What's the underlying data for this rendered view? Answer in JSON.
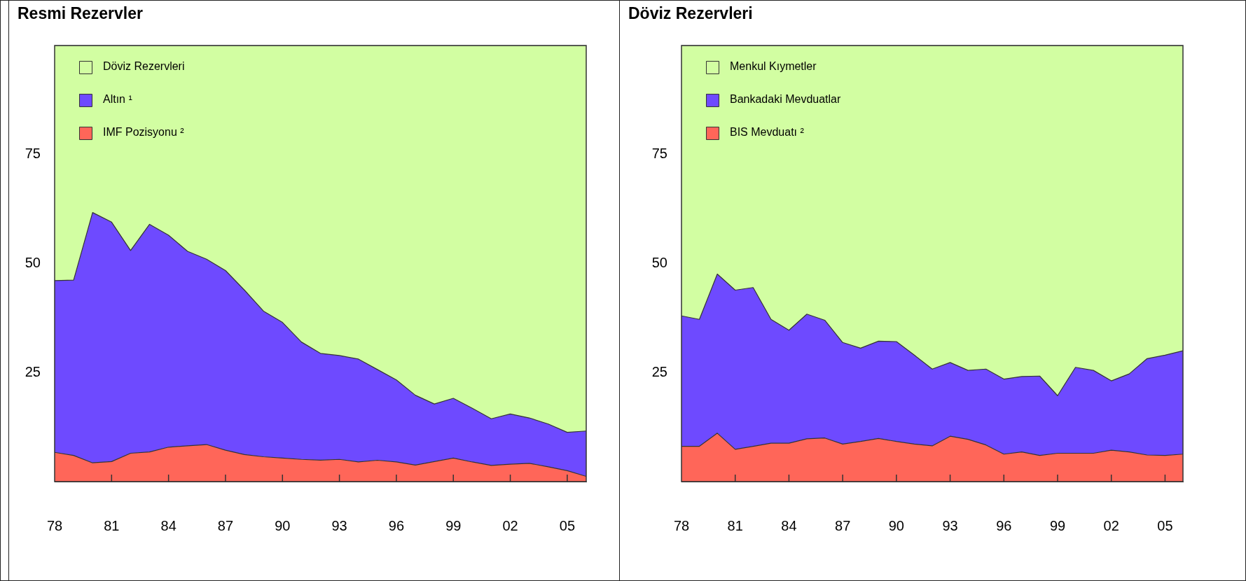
{
  "chart_data": [
    {
      "type": "area",
      "title": "Resmi Rezervler",
      "stacked": true,
      "legend": "top left",
      "xlim": [
        1978,
        2006
      ],
      "ylim": [
        0,
        100
      ],
      "yticks": [
        25,
        50,
        75
      ],
      "xticks": [
        {
          "value": 1978,
          "label": "78"
        },
        {
          "value": 1981,
          "label": "81"
        },
        {
          "value": 1984,
          "label": "84"
        },
        {
          "value": 1987,
          "label": "87"
        },
        {
          "value": 1990,
          "label": "90"
        },
        {
          "value": 1993,
          "label": "93"
        },
        {
          "value": 1996,
          "label": "96"
        },
        {
          "value": 1999,
          "label": "99"
        },
        {
          "value": 2002,
          "label": "02"
        },
        {
          "value": 2005,
          "label": "05"
        }
      ],
      "x": [
        1978,
        1979,
        1980,
        1981,
        1982,
        1983,
        1984,
        1985,
        1986,
        1987,
        1988,
        1989,
        1990,
        1991,
        1992,
        1993,
        1994,
        1995,
        1996,
        1997,
        1998,
        1999,
        2000,
        2001,
        2002,
        2003,
        2004,
        2005,
        2006
      ],
      "series": [
        {
          "name": "IMF Pozisyonu ²",
          "color": "#ff6659",
          "values": [
            6.7,
            6.0,
            4.3,
            4.6,
            6.5,
            6.8,
            7.9,
            8.2,
            8.5,
            7.2,
            6.2,
            5.7,
            5.4,
            5.1,
            4.9,
            5.1,
            4.5,
            4.9,
            4.5,
            3.8,
            4.6,
            5.4,
            4.5,
            3.7,
            4.0,
            4.2,
            3.4,
            2.5,
            1.2
          ]
        },
        {
          "name": "Altın ¹",
          "color": "#6e4aff",
          "values": [
            39.4,
            40.2,
            57.4,
            54.9,
            46.5,
            52.2,
            48.6,
            44.6,
            42.5,
            41.2,
            37.7,
            33.4,
            31.1,
            26.9,
            24.5,
            23.8,
            23.6,
            20.8,
            18.8,
            16.0,
            13.2,
            13.7,
            12.3,
            10.7,
            11.5,
            10.4,
            9.8,
            8.8,
            10.4
          ]
        },
        {
          "name": "Döviz Rezervleri",
          "color": "#d2fea2",
          "values": [
            53.9,
            53.8,
            38.3,
            40.5,
            47.0,
            41.0,
            43.5,
            47.2,
            49.0,
            51.6,
            56.1,
            60.9,
            63.5,
            68.0,
            70.6,
            71.1,
            71.9,
            74.3,
            76.7,
            80.2,
            82.2,
            80.9,
            83.2,
            85.6,
            84.5,
            85.4,
            86.8,
            88.7,
            88.4
          ]
        }
      ]
    },
    {
      "type": "area",
      "title": "Döviz Rezervleri",
      "stacked": true,
      "legend": "top left",
      "xlim": [
        1978,
        2006
      ],
      "ylim": [
        0,
        100
      ],
      "yticks": [
        25,
        50,
        75
      ],
      "xticks": [
        {
          "value": 1978,
          "label": "78"
        },
        {
          "value": 1981,
          "label": "81"
        },
        {
          "value": 1984,
          "label": "84"
        },
        {
          "value": 1987,
          "label": "87"
        },
        {
          "value": 1990,
          "label": "90"
        },
        {
          "value": 1993,
          "label": "93"
        },
        {
          "value": 1996,
          "label": "96"
        },
        {
          "value": 1999,
          "label": "99"
        },
        {
          "value": 2002,
          "label": "02"
        },
        {
          "value": 2005,
          "label": "05"
        }
      ],
      "x": [
        1978,
        1979,
        1980,
        1981,
        1982,
        1983,
        1984,
        1985,
        1986,
        1987,
        1988,
        1989,
        1990,
        1991,
        1992,
        1993,
        1994,
        1995,
        1996,
        1997,
        1998,
        1999,
        2000,
        2001,
        2002,
        2003,
        2004,
        2005,
        2006
      ],
      "series": [
        {
          "name": "BIS Mevduatı ²",
          "color": "#ff6659",
          "values": [
            8.1,
            8.1,
            11.1,
            7.4,
            8.1,
            8.8,
            8.8,
            9.8,
            10.0,
            8.6,
            9.2,
            9.9,
            9.2,
            8.6,
            8.2,
            10.4,
            9.7,
            8.4,
            6.3,
            6.8,
            6.0,
            6.5,
            6.5,
            6.5,
            7.2,
            6.8,
            6.1,
            6.0,
            6.3
          ]
        },
        {
          "name": "Bankadaki Mevduatlar",
          "color": "#6e4aff",
          "values": [
            29.9,
            29.1,
            36.5,
            36.5,
            36.4,
            28.4,
            25.9,
            28.6,
            27.0,
            23.3,
            21.4,
            22.3,
            22.9,
            20.4,
            17.6,
            16.9,
            15.8,
            17.4,
            17.2,
            17.3,
            18.2,
            13.2,
            19.7,
            19.0,
            15.9,
            17.9,
            22.1,
            23.0,
            23.7
          ]
        },
        {
          "name": "Menkul Kıymetler",
          "color": "#d2fea2",
          "values": [
            62.0,
            62.8,
            52.4,
            56.1,
            55.5,
            62.8,
            65.3,
            61.6,
            63.0,
            68.1,
            69.4,
            67.8,
            67.9,
            71.0,
            74.2,
            72.7,
            74.5,
            74.2,
            76.5,
            75.9,
            75.8,
            80.3,
            73.8,
            74.5,
            76.9,
            75.3,
            71.8,
            71.0,
            70.0
          ]
        }
      ]
    }
  ]
}
